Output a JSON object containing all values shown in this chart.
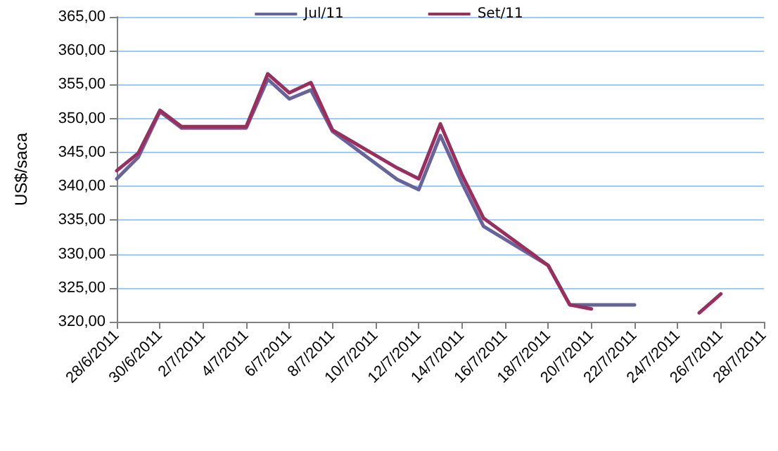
{
  "chart_data": {
    "type": "line",
    "ylabel": "US$/saca",
    "legend": "top",
    "grid": "y",
    "marker": "none",
    "xlim": [
      "2011-06-28",
      "2011-07-28"
    ],
    "xticks": [
      {
        "value": "2011-06-28",
        "label": "28/6/2011"
      },
      {
        "value": "2011-06-30",
        "label": "30/6/2011"
      },
      {
        "value": "2011-07-02",
        "label": "2/7/2011"
      },
      {
        "value": "2011-07-04",
        "label": "4/7/2011"
      },
      {
        "value": "2011-07-06",
        "label": "6/7/2011"
      },
      {
        "value": "2011-07-08",
        "label": "8/7/2011"
      },
      {
        "value": "2011-07-10",
        "label": "10/7/2011"
      },
      {
        "value": "2011-07-12",
        "label": "12/7/2011"
      },
      {
        "value": "2011-07-14",
        "label": "14/7/2011"
      },
      {
        "value": "2011-07-16",
        "label": "16/7/2011"
      },
      {
        "value": "2011-07-18",
        "label": "18/7/2011"
      },
      {
        "value": "2011-07-20",
        "label": "20/7/2011"
      },
      {
        "value": "2011-07-22",
        "label": "22/7/2011"
      },
      {
        "value": "2011-07-24",
        "label": "24/7/2011"
      },
      {
        "value": "2011-07-26",
        "label": "26/7/2011"
      },
      {
        "value": "2011-07-28",
        "label": "28/7/2011"
      }
    ],
    "ylim": [
      320,
      365
    ],
    "yticks": [
      {
        "value": 320,
        "label": "320,00"
      },
      {
        "value": 325,
        "label": "325,00"
      },
      {
        "value": 330,
        "label": "330,00"
      },
      {
        "value": 335,
        "label": "335,00"
      },
      {
        "value": 340,
        "label": "340,00"
      },
      {
        "value": 345,
        "label": "345,00"
      },
      {
        "value": 350,
        "label": "350,00"
      },
      {
        "value": 355,
        "label": "355,00"
      },
      {
        "value": 360,
        "label": "360,00"
      },
      {
        "value": 365,
        "label": "365,00"
      }
    ],
    "series": [
      {
        "name": "Jul/11",
        "color": "#65659c",
        "x": [
          "2011-06-28",
          "2011-06-29",
          "2011-06-30",
          "2011-07-01",
          "2011-07-04",
          "2011-07-05",
          "2011-07-06",
          "2011-07-07",
          "2011-07-08",
          "2011-07-11",
          "2011-07-12",
          "2011-07-13",
          "2011-07-14",
          "2011-07-15",
          "2011-07-18",
          "2011-07-19",
          "2011-07-20",
          "2011-07-21",
          "2011-07-22"
        ],
        "values": [
          341.1,
          344.3,
          351.0,
          348.6,
          348.6,
          355.8,
          352.9,
          354.2,
          348.1,
          341.0,
          339.5,
          347.5,
          340.5,
          334.1,
          328.3,
          322.5,
          322.5,
          322.5,
          322.5
        ]
      },
      {
        "name": "Set/11",
        "color": "#9b2d5f",
        "x": [
          "2011-06-28",
          "2011-06-29",
          "2011-06-30",
          "2011-07-01",
          "2011-07-04",
          "2011-07-05",
          "2011-07-06",
          "2011-07-07",
          "2011-07-08",
          "2011-07-11",
          "2011-07-12",
          "2011-07-13",
          "2011-07-14",
          "2011-07-15",
          "2011-07-18",
          "2011-07-19",
          "2011-07-20",
          "2011-07-21",
          "2011-07-22",
          "2011-07-25",
          "2011-07-26"
        ],
        "values": [
          342.3,
          344.9,
          351.2,
          348.8,
          348.8,
          356.6,
          353.8,
          355.3,
          348.3,
          342.7,
          341.1,
          349.2,
          341.7,
          335.3,
          328.3,
          322.5,
          321.9,
          null,
          null,
          321.3,
          324.1
        ]
      }
    ]
  }
}
